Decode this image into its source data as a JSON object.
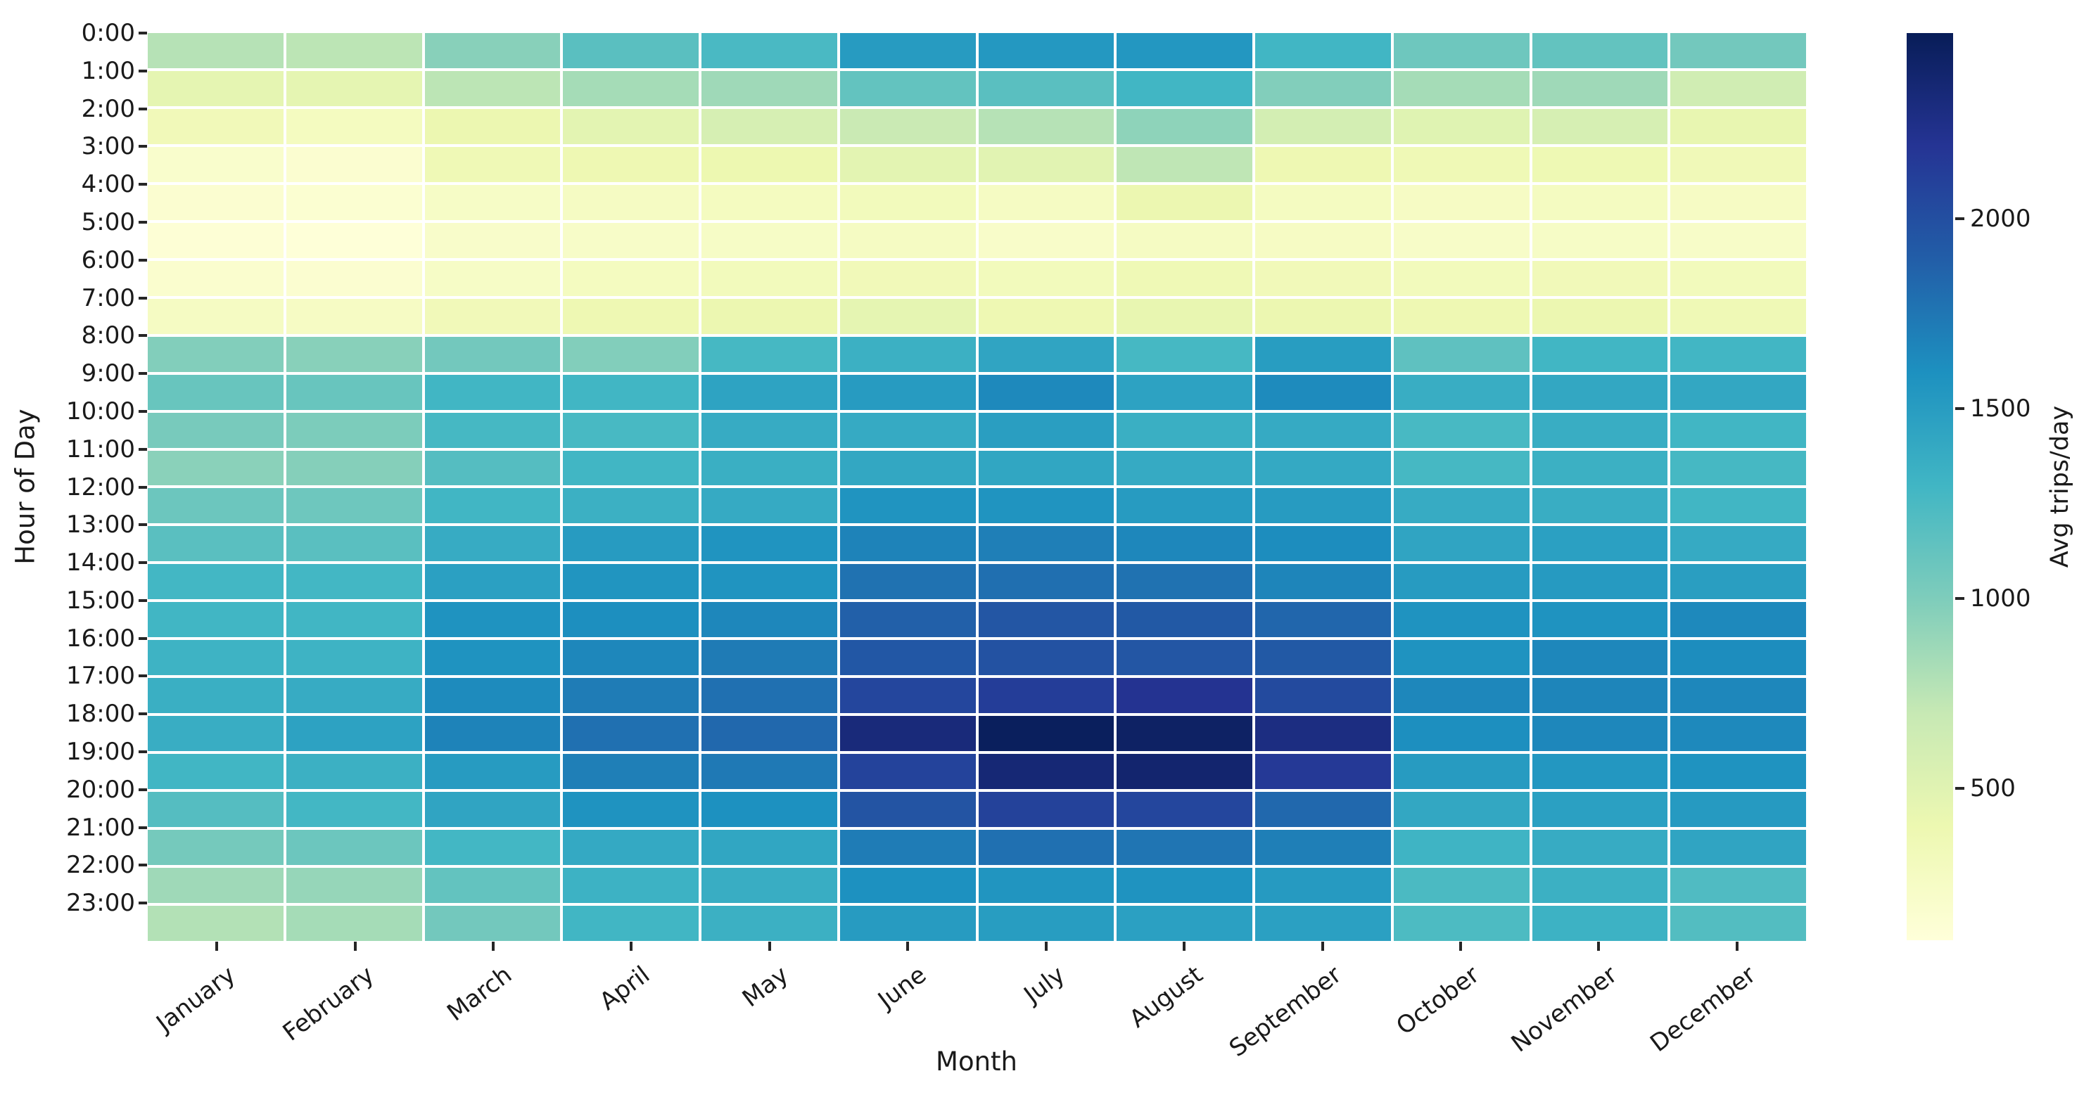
{
  "chart_data": {
    "type": "heatmap",
    "title": "",
    "xlabel": "Month",
    "ylabel": "Hour of Day",
    "x_categories": [
      "January",
      "February",
      "March",
      "April",
      "May",
      "June",
      "July",
      "August",
      "September",
      "October",
      "November",
      "December"
    ],
    "y_categories": [
      "0:00",
      "1:00",
      "2:00",
      "3:00",
      "4:00",
      "5:00",
      "6:00",
      "7:00",
      "8:00",
      "9:00",
      "10:00",
      "11:00",
      "12:00",
      "13:00",
      "14:00",
      "15:00",
      "16:00",
      "17:00",
      "18:00",
      "19:00",
      "20:00",
      "21:00",
      "22:00",
      "23:00"
    ],
    "values": [
      [
        770,
        745,
        960,
        1175,
        1250,
        1510,
        1535,
        1545,
        1295,
        1080,
        1130,
        1055
      ],
      [
        460,
        460,
        745,
        840,
        865,
        1130,
        1175,
        1295,
        985,
        840,
        865,
        625
      ],
      [
        340,
        290,
        410,
        480,
        580,
        675,
        770,
        935,
        600,
        505,
        580,
        435
      ],
      [
        195,
        170,
        365,
        385,
        400,
        480,
        495,
        730,
        385,
        365,
        375,
        350
      ],
      [
        170,
        160,
        245,
        265,
        290,
        315,
        265,
        410,
        280,
        255,
        280,
        255
      ],
      [
        130,
        110,
        210,
        230,
        245,
        265,
        220,
        265,
        255,
        230,
        245,
        230
      ],
      [
        185,
        170,
        245,
        290,
        315,
        340,
        315,
        365,
        340,
        315,
        340,
        315
      ],
      [
        265,
        255,
        340,
        385,
        410,
        460,
        385,
        435,
        410,
        385,
        410,
        365
      ],
      [
        985,
        960,
        1055,
        985,
        1270,
        1340,
        1440,
        1270,
        1500,
        1150,
        1295,
        1290
      ],
      [
        1105,
        1105,
        1295,
        1295,
        1450,
        1510,
        1640,
        1460,
        1630,
        1365,
        1415,
        1415
      ],
      [
        1030,
        1010,
        1270,
        1260,
        1380,
        1390,
        1485,
        1355,
        1390,
        1260,
        1365,
        1295
      ],
      [
        950,
        970,
        1200,
        1295,
        1355,
        1415,
        1425,
        1390,
        1400,
        1270,
        1340,
        1270
      ],
      [
        1090,
        1080,
        1295,
        1340,
        1390,
        1570,
        1570,
        1510,
        1510,
        1380,
        1365,
        1295
      ],
      [
        1175,
        1175,
        1380,
        1510,
        1570,
        1675,
        1700,
        1655,
        1615,
        1440,
        1475,
        1390
      ],
      [
        1285,
        1285,
        1475,
        1560,
        1570,
        1775,
        1795,
        1775,
        1665,
        1510,
        1520,
        1485
      ],
      [
        1295,
        1295,
        1580,
        1605,
        1655,
        1880,
        1950,
        1930,
        1845,
        1580,
        1580,
        1640
      ],
      [
        1320,
        1320,
        1580,
        1655,
        1725,
        1940,
        1975,
        1950,
        1930,
        1580,
        1655,
        1620
      ],
      [
        1355,
        1380,
        1630,
        1715,
        1785,
        2060,
        2130,
        2205,
        2035,
        1655,
        1665,
        1655
      ],
      [
        1365,
        1460,
        1675,
        1785,
        1835,
        2320,
        2465,
        2430,
        2285,
        1605,
        1655,
        1640
      ],
      [
        1295,
        1340,
        1510,
        1700,
        1735,
        2085,
        2345,
        2380,
        2155,
        1510,
        1545,
        1580
      ],
      [
        1200,
        1285,
        1440,
        1580,
        1595,
        1965,
        2095,
        2060,
        1835,
        1415,
        1475,
        1520
      ],
      [
        1045,
        1090,
        1285,
        1400,
        1425,
        1715,
        1785,
        1760,
        1700,
        1310,
        1380,
        1440
      ],
      [
        865,
        900,
        1130,
        1330,
        1365,
        1595,
        1560,
        1580,
        1520,
        1245,
        1340,
        1225
      ],
      [
        780,
        840,
        1055,
        1295,
        1340,
        1510,
        1500,
        1475,
        1475,
        1235,
        1330,
        1210
      ]
    ],
    "colorbar": {
      "label": "Avg trips/day",
      "ticks": [
        500,
        1000,
        1500,
        2000
      ],
      "vmin": 100,
      "vmax": 2490
    },
    "colormap": {
      "name": "YlGnBu",
      "stops": [
        [
          0.0,
          255,
          255,
          217
        ],
        [
          0.125,
          237,
          248,
          177
        ],
        [
          0.25,
          199,
          233,
          180
        ],
        [
          0.375,
          127,
          205,
          187
        ],
        [
          0.5,
          65,
          182,
          196
        ],
        [
          0.625,
          29,
          145,
          192
        ],
        [
          0.75,
          34,
          94,
          168
        ],
        [
          0.875,
          37,
          52,
          148
        ],
        [
          1.0,
          8,
          29,
          88
        ]
      ]
    },
    "layout": {
      "grid": "off",
      "legend": "colorbar-right",
      "x_tick_rotation_deg": 37
    }
  }
}
